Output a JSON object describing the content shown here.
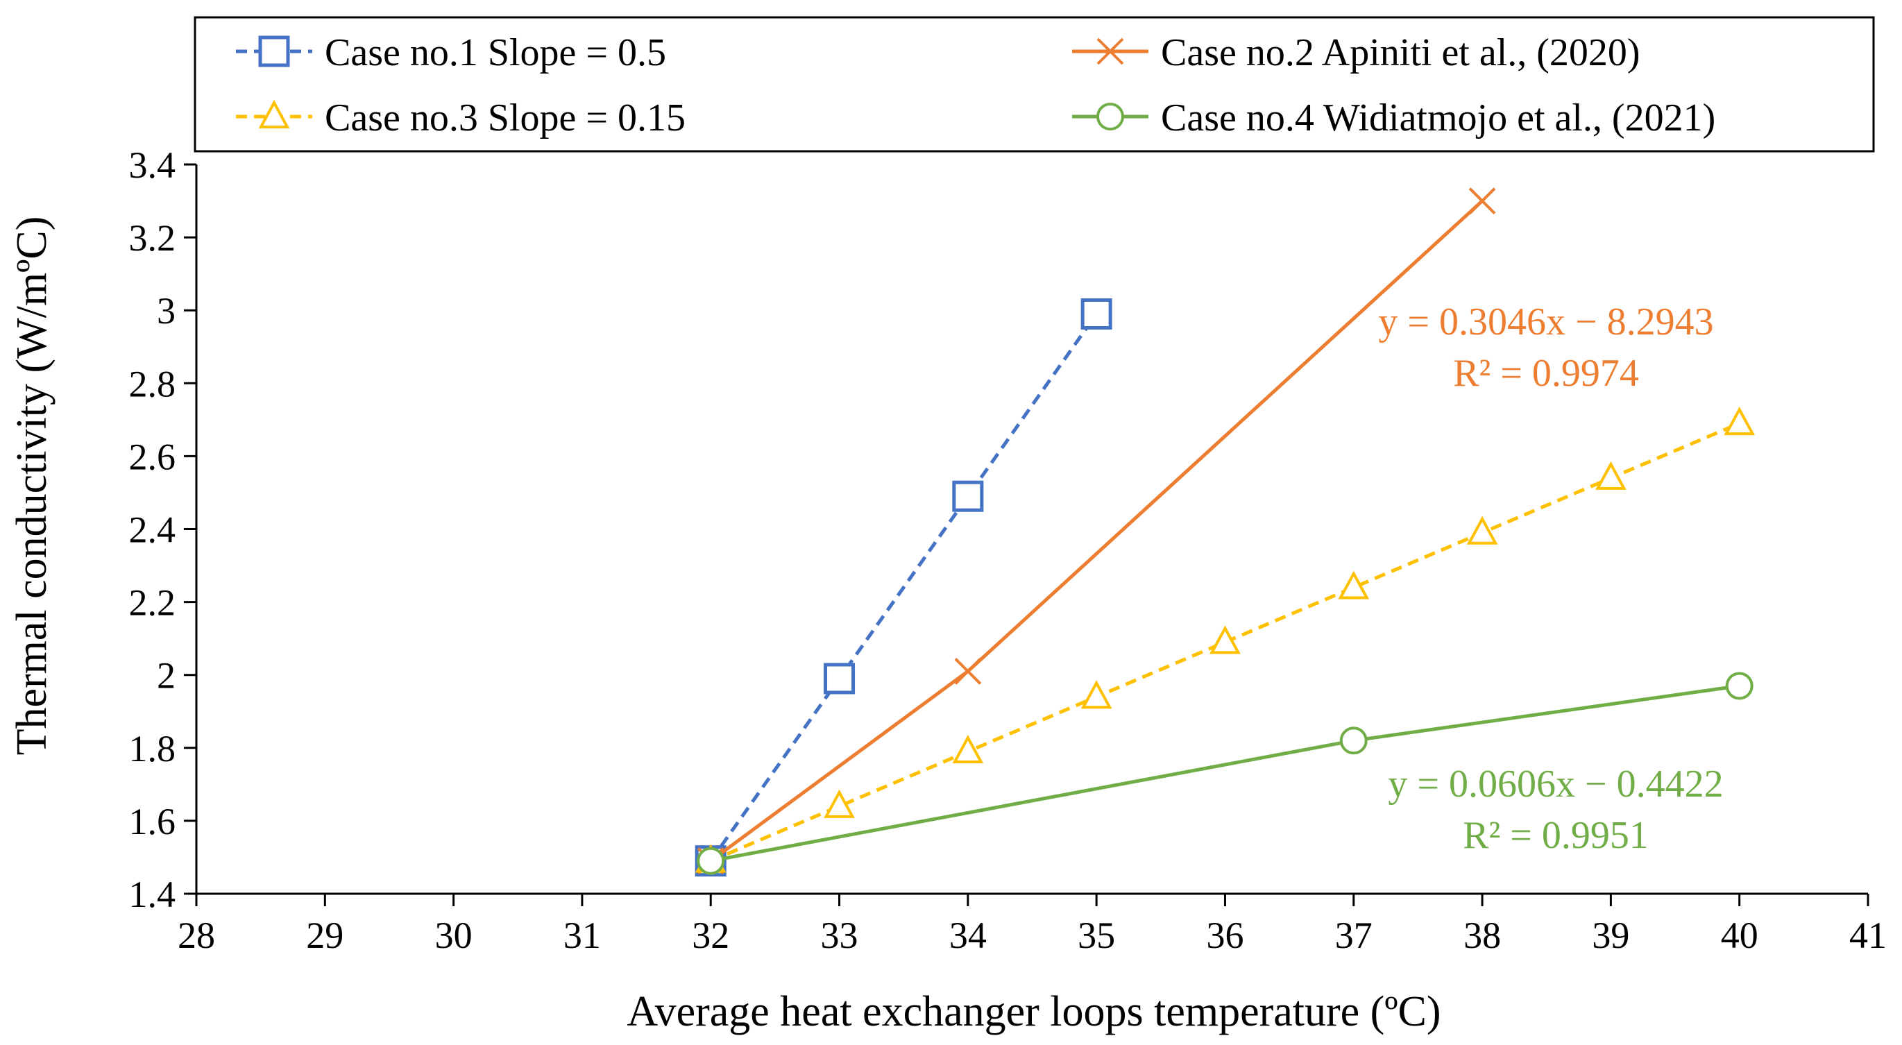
{
  "chart_data": {
    "type": "line",
    "title": "",
    "xlabel": "Average heat exchanger loops temperature (ºC)",
    "ylabel": "Thermal conductivity (W/mºC)",
    "xlim": [
      28,
      41
    ],
    "ylim": [
      1.4,
      3.4
    ],
    "x_ticks": [
      28,
      29,
      30,
      31,
      32,
      33,
      34,
      35,
      36,
      37,
      38,
      39,
      40,
      41
    ],
    "y_ticks": [
      1.4,
      1.6,
      1.8,
      2,
      2.2,
      2.4,
      2.6,
      2.8,
      3,
      3.2,
      3.4
    ],
    "grid": false,
    "legend_position": "top",
    "series": [
      {
        "name": "Case no.1 Slope = 0.5",
        "color": "#4472C4",
        "line_style": "dashed",
        "marker": "square",
        "x": [
          32,
          33,
          34,
          35
        ],
        "y": [
          1.49,
          1.99,
          2.49,
          2.99
        ]
      },
      {
        "name": "Case no.2 Apiniti et al., (2020)",
        "color": "#ED7D31",
        "line_style": "solid",
        "marker": "x",
        "x": [
          32,
          34,
          38
        ],
        "y": [
          1.49,
          2.01,
          3.3
        ]
      },
      {
        "name": "Case no.3 Slope = 0.15",
        "color": "#FFC000",
        "line_style": "dashed",
        "marker": "triangle",
        "x": [
          32,
          33,
          34,
          35,
          36,
          37,
          38,
          39,
          40
        ],
        "y": [
          1.49,
          1.64,
          1.79,
          1.94,
          2.09,
          2.24,
          2.39,
          2.54,
          2.69
        ]
      },
      {
        "name": "Case no.4 Widiatmojo et al., (2021)",
        "color": "#70AD47",
        "line_style": "solid",
        "marker": "circle",
        "x": [
          32,
          37,
          40
        ],
        "y": [
          1.49,
          1.82,
          1.97
        ]
      }
    ],
    "annotations": [
      {
        "line1": "y = 0.3046x − 8.2943",
        "line2": "R² = 0.9974",
        "color": "#ED7D31"
      },
      {
        "line1": "y = 0.0606x − 0.4422",
        "line2": "R² = 0.9951",
        "color": "#70AD47"
      }
    ]
  }
}
